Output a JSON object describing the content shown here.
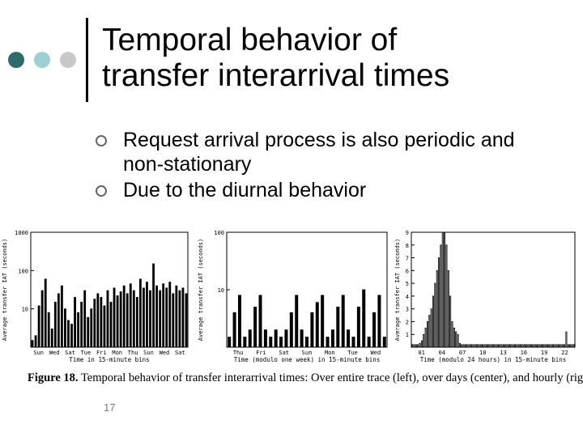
{
  "slide": {
    "title_line1": "Temporal behavior of",
    "title_line2": "transfer interarrival times",
    "bullets": [
      "Request arrival process is also periodic and non-stationary",
      "Due to the diurnal behavior"
    ],
    "caption_label": "Figure 18.",
    "caption_text": "Temporal behavior of transfer interarrival times: Over entire trace (left), over days (center), and hourly (right).",
    "slide_number": "17",
    "colors": {
      "dot_dark": "#2e6b6b",
      "dot_mid": "#9ecfd2",
      "dot_light": "#c8c8c8",
      "bullet_marker": "#666666"
    }
  },
  "chart_data": [
    {
      "type": "bar",
      "xlabel": "Time in 15-minute bins",
      "ylabel": "Average transfer IAT (seconds)",
      "y_scale": "log",
      "ylim": [
        1,
        1000
      ],
      "y_ticks": [
        "1000",
        "100",
        "10"
      ],
      "x_ticks": [
        "Sun",
        "Wed",
        "Sat",
        "Tue",
        "Fri",
        "Mon",
        "Thu",
        "Sun",
        "Wed",
        "Sat"
      ],
      "values": [
        1.5,
        2,
        12,
        30,
        60,
        8,
        3,
        15,
        25,
        40,
        10,
        5,
        4,
        20,
        8,
        15,
        30,
        6,
        10,
        18,
        25,
        20,
        12,
        30,
        15,
        35,
        22,
        28,
        40,
        25,
        45,
        30,
        20,
        60,
        35,
        50,
        30,
        150,
        40,
        30,
        45,
        35,
        50,
        25,
        40,
        30,
        35,
        25
      ]
    },
    {
      "type": "bar",
      "xlabel": "Time (modulo one week) in 15-minute bins",
      "ylabel": "Average transfer IAT (seconds)",
      "y_scale": "log",
      "ylim": [
        1,
        100
      ],
      "y_ticks": [
        "100",
        "10"
      ],
      "x_ticks": [
        "Thu",
        "Fri",
        "Sat",
        "Sun",
        "Mon",
        "Tue",
        "Wed"
      ],
      "values": [
        1.5,
        4,
        8,
        1.5,
        2,
        5,
        8,
        2,
        1.5,
        2,
        1.5,
        2,
        4,
        8,
        2,
        1.5,
        4,
        6,
        8,
        1.5,
        2,
        5,
        8,
        2,
        1.5,
        5,
        10,
        1.5,
        4,
        8,
        1.5
      ]
    },
    {
      "type": "bar",
      "xlabel": "Time (modulo 24 hours) in 15-minute bins",
      "ylabel": "Average transfer IAT (seconds)",
      "ylim": [
        0,
        9
      ],
      "y_ticks": [
        "9",
        "8",
        "7",
        "6",
        "5",
        "4",
        "3",
        "2",
        "1"
      ],
      "x_ticks": [
        "01",
        "04",
        "07",
        "10",
        "13",
        "16",
        "19",
        "22"
      ],
      "values": [
        0.2,
        0.2,
        0.2,
        0.2,
        0.3,
        0.5,
        1,
        1.5,
        2,
        2.5,
        3,
        4,
        5,
        6,
        7,
        8,
        9,
        9,
        8,
        6,
        4,
        2,
        1.5,
        1.2,
        1,
        0.3,
        0.2,
        0.2,
        0.2,
        0.2,
        0.2,
        0.2,
        0.2,
        0.2,
        0.2,
        0.2,
        0.2,
        0.2,
        0.2,
        0.2,
        0.2,
        0.2,
        0.2,
        0.2,
        0.2,
        0.2,
        0.2,
        0.2,
        0.2,
        0.2,
        0.2,
        0.2,
        0.2,
        0.2,
        0.2,
        0.2,
        0.2,
        0.2,
        0.2,
        0.2,
        0.2,
        0.2,
        0.2,
        0.2,
        0.2,
        0.2,
        0.2,
        0.2,
        0.2,
        0.2,
        0.2,
        0.2,
        0.2,
        0.2,
        0.2,
        0.2,
        0.2,
        0.2,
        0.2,
        0.2,
        0.2,
        1.2,
        0.2,
        0.2,
        0.2,
        0.2
      ]
    }
  ]
}
